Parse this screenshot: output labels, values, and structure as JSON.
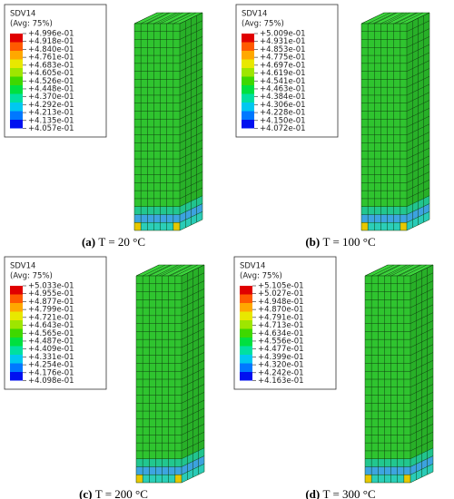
{
  "legend_colors": [
    "#e00000",
    "#ff5a00",
    "#ffa800",
    "#e8e800",
    "#9ee600",
    "#3ed800",
    "#00e040",
    "#00e0a0",
    "#00c8f0",
    "#0078ff",
    "#0010f0"
  ],
  "panels": [
    {
      "legend_title": "SDV14",
      "legend_subtitle": "(Avg: 75%)",
      "values": [
        "+4.996e-01",
        "+4.918e-01",
        "+4.840e-01",
        "+4.761e-01",
        "+4.683e-01",
        "+4.605e-01",
        "+4.526e-01",
        "+4.448e-01",
        "+4.370e-01",
        "+4.292e-01",
        "+4.213e-01",
        "+4.135e-01",
        "+4.057e-01"
      ],
      "caption_label": "(a)",
      "caption_text": "T = 20 °C"
    },
    {
      "legend_title": "SDV14",
      "legend_subtitle": "(Avg: 75%)",
      "values": [
        "+5.009e-01",
        "+4.931e-01",
        "+4.853e-01",
        "+4.775e-01",
        "+4.697e-01",
        "+4.619e-01",
        "+4.541e-01",
        "+4.463e-01",
        "+4.384e-01",
        "+4.306e-01",
        "+4.228e-01",
        "+4.150e-01",
        "+4.072e-01"
      ],
      "caption_label": "(b)",
      "caption_text": "T = 100 °C"
    },
    {
      "legend_title": "SDV14",
      "legend_subtitle": "(Avg: 75%)",
      "values": [
        "+5.033e-01",
        "+4.955e-01",
        "+4.877e-01",
        "+4.799e-01",
        "+4.721e-01",
        "+4.643e-01",
        "+4.565e-01",
        "+4.487e-01",
        "+4.409e-01",
        "+4.331e-01",
        "+4.254e-01",
        "+4.176e-01",
        "+4.098e-01"
      ],
      "caption_label": "(c)",
      "caption_text": "T = 200 °C"
    },
    {
      "legend_title": "SDV14",
      "legend_subtitle": "(Avg: 75%)",
      "values": [
        "+5.105e-01",
        "+5.027e-01",
        "+4.948e-01",
        "+4.870e-01",
        "+4.791e-01",
        "+4.713e-01",
        "+4.634e-01",
        "+4.556e-01",
        "+4.477e-01",
        "+4.399e-01",
        "+4.320e-01",
        "+4.242e-01",
        "+4.163e-01"
      ],
      "caption_label": "(d)",
      "caption_text": "T = 300 °C"
    }
  ]
}
